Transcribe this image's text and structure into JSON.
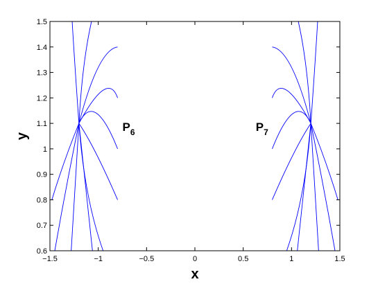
{
  "chart_data": {
    "type": "line",
    "title": "",
    "xlabel": "x",
    "ylabel": "y",
    "xlim": [
      -1.5,
      1.5
    ],
    "ylim": [
      0.6,
      1.5
    ],
    "xticks": [
      -1.5,
      -1,
      -0.5,
      0,
      0.5,
      1,
      1.5
    ],
    "xtick_labels": [
      "−1.5",
      "−1",
      "−0.5",
      "0",
      "0.5",
      "1",
      "1.5"
    ],
    "yticks": [
      0.6,
      0.7,
      0.8,
      0.9,
      1.0,
      1.1,
      1.2,
      1.3,
      1.4,
      1.5
    ],
    "ytick_labels": [
      "0.6",
      "0.7",
      "0.8",
      "0.9",
      "1",
      "1.1",
      "1.2",
      "1.3",
      "1.4",
      "1.5"
    ],
    "grid": false,
    "line_color": "#0000ff",
    "annotations": [
      {
        "main": "P",
        "sub": "6",
        "x": -0.75,
        "y": 1.07
      },
      {
        "main": "P",
        "sub": "7",
        "x": 0.63,
        "y": 1.07
      }
    ],
    "series": [
      {
        "x": [
          -1.2,
          -1.35,
          -1.48
        ],
        "y": [
          1.1,
          0.95,
          0.8
        ]
      },
      {
        "x": [
          -1.2,
          -1.33,
          -1.45
        ],
        "y": [
          1.1,
          0.85,
          0.6
        ]
      },
      {
        "x": [
          -1.2,
          -1.24,
          -1.28
        ],
        "y": [
          1.1,
          0.85,
          0.6
        ]
      },
      {
        "x": [
          -1.2,
          -1.13,
          -1.06
        ],
        "y": [
          1.1,
          0.85,
          0.6
        ]
      },
      {
        "x": [
          -1.2,
          -1.11,
          -0.95
        ],
        "y": [
          1.1,
          0.83,
          0.6
        ]
      },
      {
        "x": [
          -1.2,
          -1.02,
          -0.8
        ],
        "y": [
          1.1,
          0.98,
          0.8
        ]
      },
      {
        "x": [
          -1.2,
          -1.02,
          -0.8
        ],
        "y": [
          1.1,
          1.14,
          1.0
        ]
      },
      {
        "x": [
          -1.2,
          -0.95,
          -0.8
        ],
        "y": [
          1.1,
          1.23,
          1.2
        ]
      },
      {
        "x": [
          -1.2,
          -1.0,
          -0.8
        ],
        "y": [
          1.1,
          1.32,
          1.4
        ]
      },
      {
        "x": [
          -1.2,
          -1.15,
          -1.07
        ],
        "y": [
          1.1,
          1.32,
          1.5
        ]
      },
      {
        "x": [
          -1.2,
          -1.24,
          -1.27
        ],
        "y": [
          1.1,
          1.32,
          1.5
        ]
      },
      {
        "x": [
          1.2,
          1.35,
          1.48
        ],
        "y": [
          1.1,
          0.95,
          0.8
        ]
      },
      {
        "x": [
          1.2,
          1.33,
          1.45
        ],
        "y": [
          1.1,
          0.85,
          0.6
        ]
      },
      {
        "x": [
          1.2,
          1.24,
          1.28
        ],
        "y": [
          1.1,
          0.85,
          0.6
        ]
      },
      {
        "x": [
          1.2,
          1.13,
          1.06
        ],
        "y": [
          1.1,
          0.85,
          0.6
        ]
      },
      {
        "x": [
          1.2,
          1.11,
          0.95
        ],
        "y": [
          1.1,
          0.83,
          0.6
        ]
      },
      {
        "x": [
          1.2,
          1.02,
          0.8
        ],
        "y": [
          1.1,
          0.98,
          0.8
        ]
      },
      {
        "x": [
          1.2,
          1.02,
          0.8
        ],
        "y": [
          1.1,
          1.14,
          1.0
        ]
      },
      {
        "x": [
          1.2,
          0.95,
          0.8
        ],
        "y": [
          1.1,
          1.23,
          1.2
        ]
      },
      {
        "x": [
          1.2,
          1.0,
          0.8
        ],
        "y": [
          1.1,
          1.32,
          1.4
        ]
      },
      {
        "x": [
          1.2,
          1.15,
          1.07
        ],
        "y": [
          1.1,
          1.32,
          1.5
        ]
      },
      {
        "x": [
          1.2,
          1.24,
          1.27
        ],
        "y": [
          1.1,
          1.32,
          1.5
        ]
      }
    ]
  }
}
